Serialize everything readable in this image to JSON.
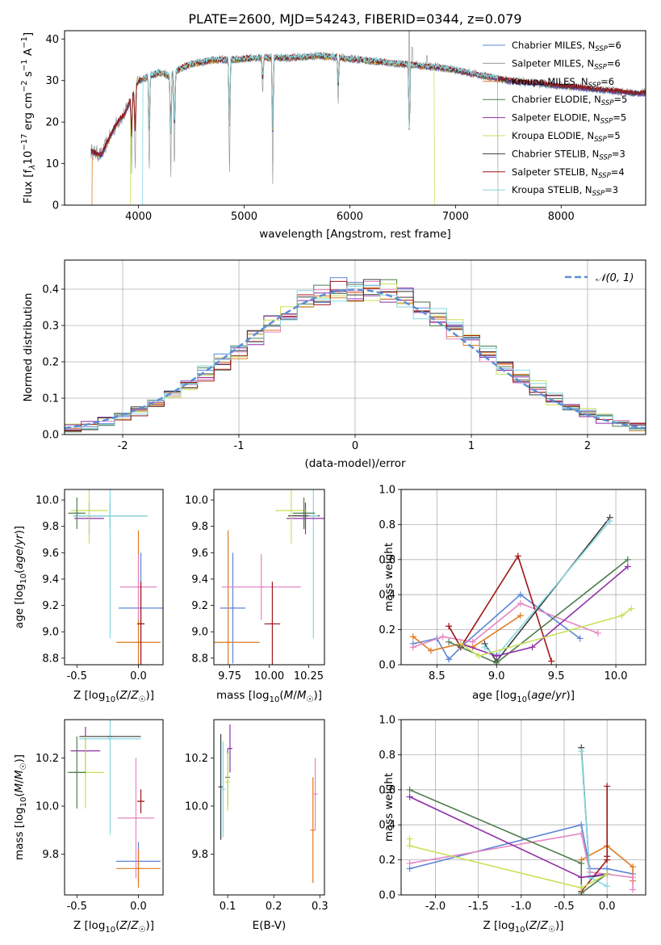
{
  "colors": {
    "chabrier_miles": "#5b84d6",
    "salpeter_miles": "#9a9a9a",
    "kroupa_miles": "#e07b22",
    "chabrier_elodie": "#4f7d4f",
    "salpeter_elodie": "#8f2fa8",
    "kroupa_elodie": "#c8e05a",
    "chabrier_stelib": "#3a3a3a",
    "salpeter_stelib": "#a01515",
    "kroupa_stelib": "#86d8e0",
    "model_pink": "#e585c2",
    "normal_curve": "#5b8fd6"
  },
  "chart_data": [
    {
      "id": "spectrum",
      "type": "line",
      "title": "PLATE=2600, MJD=54243, FIBERID=0344, z=0.079",
      "xlabel": "wavelength [Angstrom, rest frame]",
      "ylabel": "Flux [f_λ 10^-17 erg cm^-2 s^-1 A^-1]",
      "xlim": [
        3300,
        8800
      ],
      "ylim": [
        0,
        42
      ],
      "xticks": [
        "4000",
        "5000",
        "6000",
        "7000",
        "8000"
      ],
      "yticks": [
        "0",
        "10",
        "20",
        "30",
        "40"
      ],
      "grid": false,
      "legend_position": "top-right",
      "legend": [
        {
          "name": "Chabrier MILES, N",
          "sub": "SSP",
          "val": "=6",
          "color": "chabrier_miles"
        },
        {
          "name": "Salpeter MILES, N",
          "sub": "SSP",
          "val": "=6",
          "color": "salpeter_miles"
        },
        {
          "name": "Kroupa MILES, N",
          "sub": "SSP",
          "val": "=6",
          "color": "kroupa_miles"
        },
        {
          "name": "Chabrier ELODIE, N",
          "sub": "SSP",
          "val": "=5",
          "color": "chabrier_elodie"
        },
        {
          "name": "Salpeter ELODIE, N",
          "sub": "SSP",
          "val": "=5",
          "color": "salpeter_elodie"
        },
        {
          "name": "Kroupa ELODIE, N",
          "sub": "SSP",
          "val": "=5",
          "color": "kroupa_elodie"
        },
        {
          "name": "Chabrier STELIB, N",
          "sub": "SSP",
          "val": "=3",
          "color": "chabrier_stelib"
        },
        {
          "name": "Salpeter STELIB, N",
          "sub": "SSP",
          "val": "=4",
          "color": "salpeter_stelib"
        },
        {
          "name": "Kroupa STELIB, N",
          "sub": "SSP",
          "val": "=3",
          "color": "kroupa_stelib"
        }
      ],
      "continuum": [
        [
          3550,
          13
        ],
        [
          3650,
          12
        ],
        [
          3700,
          15
        ],
        [
          3800,
          20
        ],
        [
          3870,
          22
        ],
        [
          3950,
          27
        ],
        [
          4000,
          30
        ],
        [
          4100,
          31
        ],
        [
          4200,
          32
        ],
        [
          4300,
          31
        ],
        [
          4400,
          33
        ],
        [
          4500,
          34
        ],
        [
          4700,
          35
        ],
        [
          4900,
          35
        ],
        [
          5100,
          35.5
        ],
        [
          5300,
          35.5
        ],
        [
          5500,
          35.5
        ],
        [
          5700,
          36
        ],
        [
          5900,
          35.5
        ],
        [
          6100,
          35
        ],
        [
          6300,
          34.5
        ],
        [
          6500,
          34
        ],
        [
          6700,
          33.5
        ],
        [
          6900,
          33
        ],
        [
          7100,
          32
        ],
        [
          7300,
          31
        ],
        [
          7500,
          30
        ],
        [
          7700,
          29.5
        ],
        [
          7900,
          29
        ],
        [
          8100,
          28.5
        ],
        [
          8300,
          28
        ],
        [
          8500,
          27.5
        ],
        [
          8700,
          27
        ]
      ],
      "absorption_dips": [
        [
          3934,
          9
        ],
        [
          3968,
          7
        ],
        [
          4101,
          6
        ],
        [
          4305,
          5
        ],
        [
          4340,
          7
        ],
        [
          4861,
          5
        ],
        [
          5175,
          26
        ],
        [
          5270,
          4
        ],
        [
          5890,
          24
        ],
        [
          6563,
          4
        ]
      ],
      "data_spikes": [
        [
          6563,
          42
        ],
        [
          6590,
          38
        ],
        [
          6730,
          36
        ]
      ],
      "model_drops": [
        {
          "color": "kroupa_elodie",
          "start_x": 3925,
          "end_x": 6800
        },
        {
          "color": "kroupa_stelib",
          "start_x": 4040,
          "end_x": 7400
        },
        {
          "color": "kroupa_miles",
          "start_x": 3560,
          "end_x": 7400
        }
      ]
    },
    {
      "id": "residuals",
      "type": "line",
      "xlabel": "(data-model)/error",
      "ylabel": "Normed distribution",
      "xlim": [
        -2.5,
        2.5
      ],
      "ylim": [
        0,
        0.48
      ],
      "xticks": [
        "-2",
        "-1",
        "0",
        "1",
        "2"
      ],
      "yticks": [
        "0.0",
        "0.1",
        "0.2",
        "0.3",
        "0.4"
      ],
      "grid": true,
      "legend_position": "top-right",
      "legend": [
        {
          "name": "N(0,1)",
          "label": "𝒩(0, 1)",
          "color": "normal_curve",
          "style": "dashed"
        }
      ]
    },
    {
      "id": "age_vs_Z",
      "type": "scatter",
      "xlabel": "Z [log10(Z/Z☉)]",
      "ylabel": "age [log10(age/yr)]",
      "xlim": [
        -0.6,
        0.2
      ],
      "ylim": [
        8.75,
        10.08
      ],
      "xticks": [
        "-0.5",
        "0.0"
      ],
      "yticks": [
        "8.8",
        "9.0",
        "9.2",
        "9.4",
        "9.6",
        "9.8",
        "10.0"
      ],
      "grid": false,
      "points": [
        {
          "color": "chabrier_miles",
          "x": 0.02,
          "y": 9.18,
          "xerr": 0.18,
          "yerr": 0.42
        },
        {
          "color": "kroupa_miles",
          "x": 0.0,
          "y": 8.92,
          "xerr": 0.18,
          "yerr": 0.85
        },
        {
          "color": "model_pink",
          "x": 0.0,
          "y": 9.34,
          "xerr": 0.15,
          "yerr": 0.25
        },
        {
          "color": "salpeter_stelib",
          "x": 0.02,
          "y": 9.06,
          "xerr": 0.03,
          "yerr": 0.32
        },
        {
          "color": "chabrier_stelib",
          "x": -0.23,
          "y": 9.88,
          "xerr": 0.3,
          "yerr": 0.1
        },
        {
          "color": "kroupa_stelib",
          "x": -0.23,
          "y": 9.88,
          "xerr": 0.3,
          "yerr": 0.93
        },
        {
          "color": "salpeter_elodie",
          "x": -0.4,
          "y": 9.86,
          "xerr": 0.12,
          "yerr": 0.12
        },
        {
          "color": "kroupa_elodie",
          "x": -0.4,
          "y": 9.92,
          "xerr": 0.15,
          "yerr": 0.25
        },
        {
          "color": "chabrier_elodie",
          "x": -0.5,
          "y": 9.9,
          "xerr": 0.07,
          "yerr": 0.12
        }
      ]
    },
    {
      "id": "age_vs_mass",
      "type": "scatter",
      "xlabel": "mass [log10(M/M☉)]",
      "xlim": [
        9.65,
        10.35
      ],
      "ylim": [
        8.75,
        10.08
      ],
      "xticks": [
        "9.75",
        "10.00",
        "10.25"
      ],
      "yticks": [
        "8.8",
        "9.0",
        "9.2",
        "9.4",
        "9.6",
        "9.8",
        "10.0"
      ],
      "grid": false,
      "points": [
        {
          "color": "chabrier_miles",
          "x": 9.77,
          "y": 9.18,
          "xerr": 0.08,
          "yerr": 0.42
        },
        {
          "color": "kroupa_miles",
          "x": 9.74,
          "y": 8.92,
          "xerr": 0.2,
          "yerr": 0.85
        },
        {
          "color": "model_pink",
          "x": 9.95,
          "y": 9.34,
          "xerr": 0.25,
          "yerr": 0.25
        },
        {
          "color": "salpeter_stelib",
          "x": 10.02,
          "y": 9.06,
          "xerr": 0.05,
          "yerr": 0.32
        },
        {
          "color": "chabrier_stelib",
          "x": 10.22,
          "y": 9.88,
          "xerr": 0.1,
          "yerr": 0.1
        },
        {
          "color": "kroupa_stelib",
          "x": 10.28,
          "y": 9.88,
          "xerr": 0.03,
          "yerr": 0.93
        },
        {
          "color": "salpeter_elodie",
          "x": 10.23,
          "y": 9.86,
          "xerr": 0.12,
          "yerr": 0.12
        },
        {
          "color": "kroupa_elodie",
          "x": 10.14,
          "y": 9.92,
          "xerr": 0.1,
          "yerr": 0.25
        },
        {
          "color": "chabrier_elodie",
          "x": 10.22,
          "y": 9.9,
          "xerr": 0.07,
          "yerr": 0.12
        }
      ]
    },
    {
      "id": "weight_vs_age",
      "type": "line",
      "xlabel": "age [log10(age/yr)]",
      "ylabel": "mass weight",
      "xlim": [
        8.2,
        10.25
      ],
      "ylim": [
        0,
        1
      ],
      "xticks": [
        "8.5",
        "9.0",
        "9.5",
        "10.0"
      ],
      "yticks": [
        "0.0",
        "0.2",
        "0.4",
        "0.6",
        "0.8",
        "1.0"
      ],
      "grid": true,
      "series": [
        {
          "color": "chabrier_miles",
          "points": [
            [
              8.3,
              0.12
            ],
            [
              8.5,
              0.15
            ],
            [
              8.6,
              0.03
            ],
            [
              8.7,
              0.1
            ],
            [
              9.2,
              0.4
            ],
            [
              9.7,
              0.15
            ]
          ]
        },
        {
          "color": "kroupa_miles",
          "points": [
            [
              8.3,
              0.16
            ],
            [
              8.45,
              0.08
            ],
            [
              8.7,
              0.12
            ],
            [
              8.8,
              0.1
            ],
            [
              9.2,
              0.28
            ]
          ]
        },
        {
          "color": "model_pink",
          "points": [
            [
              8.3,
              0.1
            ],
            [
              8.55,
              0.16
            ],
            [
              8.8,
              0.13
            ],
            [
              9.2,
              0.35
            ],
            [
              9.85,
              0.18
            ]
          ]
        },
        {
          "color": "salpeter_stelib",
          "points": [
            [
              8.6,
              0.22
            ],
            [
              8.7,
              0.1
            ],
            [
              9.18,
              0.62
            ],
            [
              9.46,
              0.02
            ]
          ]
        },
        {
          "color": "chabrier_stelib",
          "points": [
            [
              8.9,
              0.12
            ],
            [
              9.0,
              0.02
            ],
            [
              9.95,
              0.84
            ]
          ]
        },
        {
          "color": "kroupa_stelib",
          "points": [
            [
              8.9,
              0.1
            ],
            [
              9.0,
              0.05
            ],
            [
              9.95,
              0.82
            ]
          ]
        },
        {
          "color": "chabrier_elodie",
          "points": [
            [
              8.6,
              0.13
            ],
            [
              9.0,
              0.01
            ],
            [
              10.1,
              0.6
            ]
          ]
        },
        {
          "color": "salpeter_elodie",
          "points": [
            [
              8.7,
              0.12
            ],
            [
              9.0,
              0.05
            ],
            [
              9.3,
              0.1
            ],
            [
              10.1,
              0.56
            ]
          ]
        },
        {
          "color": "kroupa_elodie",
          "points": [
            [
              8.7,
              0.12
            ],
            [
              8.85,
              0.05
            ],
            [
              10.05,
              0.28
            ],
            [
              10.13,
              0.32
            ]
          ]
        }
      ]
    },
    {
      "id": "mass_vs_Z",
      "type": "scatter",
      "xlabel": "Z [log10(Z/Z☉)]",
      "ylabel": "mass [log10(M/M☉)]",
      "xlim": [
        -0.6,
        0.2
      ],
      "ylim": [
        9.63,
        10.36
      ],
      "xticks": [
        "-0.5",
        "0.0"
      ],
      "yticks": [
        "9.8",
        "10.0",
        "10.2"
      ],
      "grid": false,
      "points": [
        {
          "color": "chabrier_miles",
          "x": 0.0,
          "y": 9.77,
          "xerr": 0.18,
          "yerr": 0.08
        },
        {
          "color": "kroupa_miles",
          "x": 0.0,
          "y": 9.74,
          "xerr": 0.18,
          "yerr": 0.08
        },
        {
          "color": "model_pink",
          "x": -0.02,
          "y": 9.95,
          "xerr": 0.15,
          "yerr": 0.25
        },
        {
          "color": "salpeter_stelib",
          "x": 0.02,
          "y": 10.02,
          "xerr": 0.03,
          "yerr": 0.05
        },
        {
          "color": "chabrier_stelib",
          "x": -0.23,
          "y": 10.29,
          "xerr": 0.25,
          "yerr": 0.01
        },
        {
          "color": "kroupa_stelib",
          "x": -0.23,
          "y": 10.28,
          "xerr": 0.25,
          "yerr": 0.4
        },
        {
          "color": "salpeter_elodie",
          "x": -0.43,
          "y": 10.23,
          "xerr": 0.12,
          "yerr": 0.1
        },
        {
          "color": "kroupa_elodie",
          "x": -0.43,
          "y": 10.14,
          "xerr": 0.15,
          "yerr": 0.15
        },
        {
          "color": "chabrier_elodie",
          "x": -0.5,
          "y": 10.14,
          "xerr": 0.07,
          "yerr": 0.15
        }
      ]
    },
    {
      "id": "mass_vs_EBV",
      "type": "scatter",
      "xlabel": "E(B-V)",
      "xlim": [
        0.07,
        0.31
      ],
      "ylim": [
        9.63,
        10.36
      ],
      "xticks": [
        "0.1",
        "0.2",
        "0.3"
      ],
      "yticks": [
        "9.8",
        "10.0",
        "10.2"
      ],
      "grid": false,
      "points": [
        {
          "color": "chabrier_stelib",
          "x": 0.085,
          "y": 10.08,
          "yerr": 0.22
        },
        {
          "color": "kroupa_stelib",
          "x": 0.09,
          "y": 10.07,
          "yerr": 0.2
        },
        {
          "color": "chabrier_elodie",
          "x": 0.1,
          "y": 10.12,
          "yerr": 0.12
        },
        {
          "color": "kroupa_elodie",
          "x": 0.1,
          "y": 10.1,
          "yerr": 0.12
        },
        {
          "color": "salpeter_elodie",
          "x": 0.105,
          "y": 10.24,
          "yerr": 0.1
        },
        {
          "color": "kroupa_miles",
          "x": 0.285,
          "y": 9.9,
          "yerr": 0.22
        },
        {
          "color": "model_pink",
          "x": 0.29,
          "y": 10.05,
          "yerr": 0.15
        }
      ]
    },
    {
      "id": "weight_vs_Z",
      "type": "line",
      "xlabel": "Z [log10(Z/Z☉)]",
      "ylabel": "mass weight",
      "xlim": [
        -2.4,
        0.45
      ],
      "ylim": [
        0,
        1
      ],
      "xticks": [
        "-2.0",
        "-1.5",
        "-1.0",
        "-0.5",
        "0.0"
      ],
      "yticks": [
        "0.0",
        "0.2",
        "0.4",
        "0.6",
        "0.8",
        "1.0"
      ],
      "grid": true,
      "series": [
        {
          "color": "chabrier_miles",
          "points": [
            [
              -2.3,
              0.15
            ],
            [
              -0.3,
              0.4
            ],
            [
              -0.2,
              0.15
            ],
            [
              0.0,
              0.15
            ],
            [
              0.3,
              0.12
            ]
          ]
        },
        {
          "color": "kroupa_miles",
          "points": [
            [
              -0.3,
              0.2
            ],
            [
              0.0,
              0.28
            ],
            [
              0.3,
              0.16
            ],
            [
              0.3,
              0.08
            ]
          ]
        },
        {
          "color": "model_pink",
          "points": [
            [
              -2.3,
              0.18
            ],
            [
              -0.3,
              0.35
            ],
            [
              -0.2,
              0.13
            ],
            [
              0.3,
              0.1
            ],
            [
              0.3,
              0.03
            ]
          ]
        },
        {
          "color": "salpeter_stelib",
          "points": [
            [
              -0.3,
              0.02
            ],
            [
              0.0,
              0.2
            ],
            [
              0.0,
              0.62
            ],
            [
              0.0,
              0.22
            ]
          ]
        },
        {
          "color": "chabrier_stelib",
          "points": [
            [
              -0.3,
              0.84
            ],
            [
              -0.2,
              0.1
            ],
            [
              0.0,
              0.12
            ]
          ]
        },
        {
          "color": "kroupa_stelib",
          "points": [
            [
              -0.3,
              0.82
            ],
            [
              -0.2,
              0.1
            ],
            [
              0.0,
              0.05
            ]
          ]
        },
        {
          "color": "chabrier_elodie",
          "points": [
            [
              -2.3,
              0.6
            ],
            [
              -0.3,
              0.18
            ],
            [
              -0.3,
              0.01
            ],
            [
              0.0,
              0.12
            ]
          ]
        },
        {
          "color": "salpeter_elodie",
          "points": [
            [
              -2.3,
              0.56
            ],
            [
              -0.3,
              0.1
            ],
            [
              0.0,
              0.12
            ]
          ]
        },
        {
          "color": "kroupa_elodie",
          "points": [
            [
              -2.3,
              0.32
            ],
            [
              -2.3,
              0.28
            ],
            [
              -0.3,
              0.04
            ],
            [
              0.0,
              0.12
            ]
          ]
        }
      ]
    }
  ]
}
